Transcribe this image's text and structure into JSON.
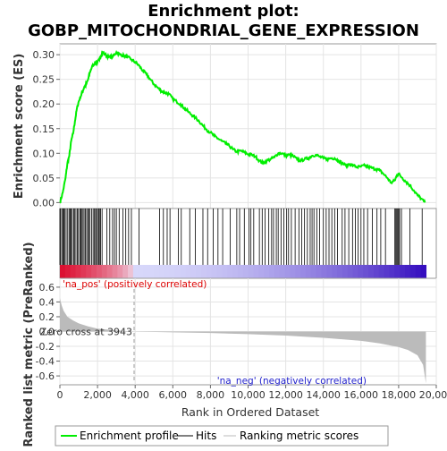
{
  "chart_data": {
    "type": "line",
    "title_line1": "Enrichment plot:",
    "title_line2": "GOBP_MITOCHONDRIAL_GENE_EXPRESSION",
    "top_panel": {
      "ylabel": "Enrichment score (ES)",
      "ylim": [
        -0.012,
        0.322
      ],
      "yticks": [
        0.0,
        0.05,
        0.1,
        0.15,
        0.2,
        0.25,
        0.3
      ],
      "ytick_labels": [
        "0.00",
        "0.05",
        "0.10",
        "0.15",
        "0.20",
        "0.25",
        "0.30"
      ],
      "grid": true,
      "series_color": "#00ee00",
      "enrichment_profile": [
        [
          0,
          0.0
        ],
        [
          150,
          0.02
        ],
        [
          300,
          0.05
        ],
        [
          400,
          0.08
        ],
        [
          500,
          0.095
        ],
        [
          600,
          0.125
        ],
        [
          700,
          0.14
        ],
        [
          800,
          0.165
        ],
        [
          900,
          0.19
        ],
        [
          1000,
          0.205
        ],
        [
          1100,
          0.215
        ],
        [
          1200,
          0.225
        ],
        [
          1300,
          0.235
        ],
        [
          1400,
          0.24
        ],
        [
          1500,
          0.25
        ],
        [
          1600,
          0.265
        ],
        [
          1700,
          0.275
        ],
        [
          1800,
          0.28
        ],
        [
          1900,
          0.285
        ],
        [
          2000,
          0.285
        ],
        [
          2100,
          0.29
        ],
        [
          2200,
          0.3
        ],
        [
          2300,
          0.305
        ],
        [
          2400,
          0.3
        ],
        [
          2600,
          0.295
        ],
        [
          2800,
          0.295
        ],
        [
          3000,
          0.305
        ],
        [
          3200,
          0.3
        ],
        [
          3400,
          0.298
        ],
        [
          3600,
          0.295
        ],
        [
          3800,
          0.29
        ],
        [
          4000,
          0.285
        ],
        [
          4200,
          0.278
        ],
        [
          4400,
          0.268
        ],
        [
          4600,
          0.26
        ],
        [
          4800,
          0.25
        ],
        [
          5000,
          0.24
        ],
        [
          5200,
          0.233
        ],
        [
          5400,
          0.226
        ],
        [
          5600,
          0.223
        ],
        [
          5800,
          0.22
        ],
        [
          6000,
          0.21
        ],
        [
          6200,
          0.205
        ],
        [
          6400,
          0.2
        ],
        [
          6600,
          0.192
        ],
        [
          6800,
          0.185
        ],
        [
          7000,
          0.178
        ],
        [
          7200,
          0.172
        ],
        [
          7400,
          0.165
        ],
        [
          7600,
          0.156
        ],
        [
          7800,
          0.148
        ],
        [
          8000,
          0.142
        ],
        [
          8200,
          0.135
        ],
        [
          8400,
          0.13
        ],
        [
          8600,
          0.125
        ],
        [
          8800,
          0.12
        ],
        [
          9000,
          0.115
        ],
        [
          9200,
          0.108
        ],
        [
          9400,
          0.103
        ],
        [
          9600,
          0.105
        ],
        [
          9800,
          0.102
        ],
        [
          10000,
          0.098
        ],
        [
          10200,
          0.097
        ],
        [
          10400,
          0.093
        ],
        [
          10600,
          0.085
        ],
        [
          10800,
          0.08
        ],
        [
          11000,
          0.085
        ],
        [
          11200,
          0.088
        ],
        [
          11400,
          0.092
        ],
        [
          11600,
          0.1
        ],
        [
          11800,
          0.1
        ],
        [
          12000,
          0.095
        ],
        [
          12200,
          0.097
        ],
        [
          12400,
          0.094
        ],
        [
          12600,
          0.088
        ],
        [
          12800,
          0.085
        ],
        [
          13000,
          0.088
        ],
        [
          13200,
          0.09
        ],
        [
          13400,
          0.095
        ],
        [
          13600,
          0.097
        ],
        [
          13800,
          0.093
        ],
        [
          14000,
          0.09
        ],
        [
          14200,
          0.088
        ],
        [
          14400,
          0.09
        ],
        [
          14600,
          0.09
        ],
        [
          14800,
          0.085
        ],
        [
          15000,
          0.08
        ],
        [
          15200,
          0.075
        ],
        [
          15400,
          0.078
        ],
        [
          15600,
          0.075
        ],
        [
          15800,
          0.072
        ],
        [
          16000,
          0.073
        ],
        [
          16200,
          0.075
        ],
        [
          16400,
          0.072
        ],
        [
          16600,
          0.07
        ],
        [
          16800,
          0.068
        ],
        [
          17000,
          0.065
        ],
        [
          17200,
          0.058
        ],
        [
          17400,
          0.05
        ],
        [
          17600,
          0.04
        ],
        [
          17800,
          0.045
        ],
        [
          17900,
          0.055
        ],
        [
          18000,
          0.058
        ],
        [
          18200,
          0.05
        ],
        [
          18400,
          0.042
        ],
        [
          18600,
          0.035
        ],
        [
          18800,
          0.025
        ],
        [
          19000,
          0.015
        ],
        [
          19200,
          0.008
        ],
        [
          19400,
          0.0
        ]
      ]
    },
    "hits_panel": {
      "hits_dense_range": [
        0,
        2300
      ],
      "hits_sparse": [
        2500,
        2650,
        2800,
        2900,
        3000,
        3150,
        3350,
        3500,
        3650,
        3800,
        4200,
        5300,
        5500,
        5700,
        5850,
        6300,
        6450,
        6900,
        7200,
        7600,
        7850,
        8150,
        8400,
        8650,
        9050,
        9400,
        9550,
        9800,
        10050,
        10150,
        10300,
        10600,
        10750,
        10900,
        11100,
        11250,
        11350,
        11500,
        11600,
        11750,
        11900,
        12050,
        12150,
        12300,
        12500,
        12700,
        12850,
        13000,
        13150,
        13300,
        13400,
        13500,
        13650,
        13800,
        14000,
        14150,
        14300,
        14450,
        14600,
        14750,
        15000,
        15150,
        15350,
        15550,
        15700,
        15850,
        16000,
        16150,
        16350,
        16600,
        16850,
        17050,
        17300,
        17800,
        17850,
        17900,
        17950,
        18000,
        18050,
        18150,
        18600,
        19250
      ]
    },
    "bottom_panel": {
      "ylabel": "Ranked list metric (PreRanked)",
      "xlabel": "Rank in Ordered Dataset",
      "xlim": [
        0,
        20000
      ],
      "xticks": [
        0,
        2000,
        4000,
        6000,
        8000,
        10000,
        12000,
        14000,
        16000,
        18000,
        20000
      ],
      "xtick_labels": [
        "0",
        "2,000",
        "4,000",
        "6,000",
        "8,000",
        "10,000",
        "12,000",
        "14,000",
        "16,000",
        "18,000",
        "20,000"
      ],
      "ylim": [
        -0.72,
        0.72
      ],
      "yticks": [
        -0.6,
        -0.4,
        -0.2,
        0.0,
        0.2,
        0.4,
        0.6
      ],
      "ytick_labels": [
        "-0.6",
        "-0.4",
        "-0.2",
        "0.0",
        "0.2",
        "0.4",
        "0.6"
      ],
      "zero_cross_rank": 3943,
      "zero_cross_label": "Zero cross at 3943",
      "pos_label": "'na_pos' (positively correlated)",
      "neg_label": "'na_neg' (negatively correlated)",
      "metric_curve": [
        [
          0,
          0.45
        ],
        [
          100,
          0.35
        ],
        [
          200,
          0.28
        ],
        [
          400,
          0.2
        ],
        [
          700,
          0.15
        ],
        [
          1000,
          0.11
        ],
        [
          1500,
          0.07
        ],
        [
          2000,
          0.04
        ],
        [
          3000,
          0.015
        ],
        [
          3943,
          0.0
        ],
        [
          6000,
          -0.01
        ],
        [
          8000,
          -0.02
        ],
        [
          10000,
          -0.035
        ],
        [
          12000,
          -0.055
        ],
        [
          14000,
          -0.085
        ],
        [
          16000,
          -0.125
        ],
        [
          17000,
          -0.16
        ],
        [
          18000,
          -0.21
        ],
        [
          18500,
          -0.25
        ],
        [
          19000,
          -0.32
        ],
        [
          19300,
          -0.45
        ],
        [
          19450,
          -0.7
        ]
      ]
    },
    "legend": {
      "placement": "bottom",
      "items": [
        {
          "label": "Enrichment profile",
          "color": "#00ee00"
        },
        {
          "label": "Hits",
          "color": "#000000"
        },
        {
          "label": "Ranking metric scores",
          "color": "#bbbbbb"
        }
      ]
    },
    "max_rank": 19450
  }
}
